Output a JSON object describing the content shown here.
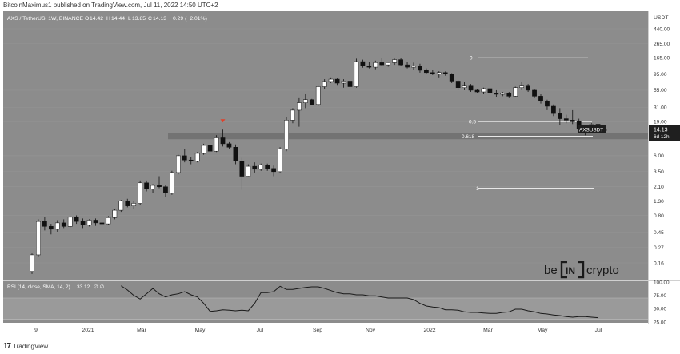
{
  "header": {
    "published_by": "BitcoinMaximus1 published on TradingView.com, Jul 11, 2022 14:50 UTC+2"
  },
  "footer": {
    "logo_text": "TradingView",
    "logo_mark": "17"
  },
  "symbol": {
    "title": "AXS / TetherUS, 1W, BINANCE",
    "open_label": "O",
    "open": "14.42",
    "high_label": "H",
    "high": "14.44",
    "low_label": "L",
    "low": "13.85",
    "close_label": "C",
    "close": "14.13",
    "change": "−0.29 (−2.01%)"
  },
  "price_badge": {
    "ticker": "AXSUSDT",
    "price": "14.13",
    "countdown": "6d 12h"
  },
  "watermark": {
    "left": "be",
    "middle": "IN",
    "right": "crypto"
  },
  "colors": {
    "pane": "#8c8c8c",
    "axis_bg": "#ffffff",
    "up": "#ffffff",
    "down": "#111111",
    "marker": "#e0402a"
  },
  "chart_data": [
    {
      "type": "candlestick",
      "title": "AXS / TetherUS, 1W, BINANCE",
      "y_scale": "log",
      "y_unit": "USDT",
      "y_ticks": [
        0.16,
        0.27,
        0.45,
        0.8,
        1.3,
        2.1,
        3.5,
        6.0,
        19.0,
        31.0,
        55.0,
        95.0,
        165.0,
        265.0,
        440.0
      ],
      "y_tick_labels": [
        "0.16",
        "0.27",
        "0.45",
        "0.80",
        "1.30",
        "2.10",
        "3.50",
        "6.00",
        "19.00",
        "31.00",
        "55.00",
        "95.00",
        "165.00",
        "265.00",
        "440.00"
      ],
      "x_tick_labels": [
        "9",
        "2021",
        "Mar",
        "May",
        "Jul",
        "Sep",
        "Nov",
        "2022",
        "Mar",
        "May",
        "Jul"
      ],
      "fib_levels": [
        {
          "label": "0",
          "price": 165
        },
        {
          "label": "0.5",
          "price": 19
        },
        {
          "label": "0.618",
          "price": 11.6
        },
        {
          "label": "1",
          "price": 2.0
        }
      ],
      "support_zone": [
        10.5,
        13.0
      ],
      "resistance_marker_price": 14.5,
      "candles": [
        [
          0.12,
          0.22,
          0.11,
          0.21
        ],
        [
          0.21,
          0.7,
          0.2,
          0.65
        ],
        [
          0.65,
          0.75,
          0.48,
          0.55
        ],
        [
          0.55,
          0.6,
          0.42,
          0.5
        ],
        [
          0.5,
          0.68,
          0.46,
          0.62
        ],
        [
          0.62,
          0.7,
          0.52,
          0.55
        ],
        [
          0.55,
          0.78,
          0.53,
          0.75
        ],
        [
          0.75,
          0.8,
          0.6,
          0.65
        ],
        [
          0.65,
          0.72,
          0.52,
          0.58
        ],
        [
          0.58,
          0.7,
          0.55,
          0.68
        ],
        [
          0.68,
          0.72,
          0.56,
          0.62
        ],
        [
          0.62,
          0.7,
          0.5,
          0.6
        ],
        [
          0.6,
          0.78,
          0.58,
          0.74
        ],
        [
          0.74,
          1.0,
          0.7,
          0.95
        ],
        [
          0.95,
          1.35,
          0.9,
          1.3
        ],
        [
          1.3,
          1.4,
          1.05,
          1.1
        ],
        [
          1.1,
          1.3,
          1.0,
          1.2
        ],
        [
          1.2,
          2.6,
          1.15,
          2.4
        ],
        [
          2.4,
          2.6,
          1.8,
          1.95
        ],
        [
          1.95,
          2.3,
          1.7,
          2.2
        ],
        [
          2.2,
          3.0,
          2.0,
          2.1
        ],
        [
          2.1,
          2.2,
          1.5,
          1.7
        ],
        [
          1.7,
          3.6,
          1.6,
          3.4
        ],
        [
          3.4,
          6.2,
          3.2,
          6.0
        ],
        [
          6.0,
          7.5,
          4.8,
          5.2
        ],
        [
          5.2,
          5.8,
          4.5,
          5.0
        ],
        [
          5.0,
          6.8,
          4.8,
          6.5
        ],
        [
          6.5,
          9.0,
          6.2,
          8.5
        ],
        [
          8.5,
          9.5,
          6.5,
          7.0
        ],
        [
          7.0,
          12.0,
          6.8,
          11.0
        ],
        [
          11.0,
          14.5,
          8.2,
          9.0
        ],
        [
          9.0,
          9.5,
          7.5,
          8.0
        ],
        [
          8.0,
          8.8,
          4.5,
          5.0
        ],
        [
          5.0,
          5.6,
          1.9,
          3.0
        ],
        [
          3.0,
          4.5,
          2.9,
          4.2
        ],
        [
          4.2,
          4.8,
          3.4,
          3.8
        ],
        [
          3.8,
          4.6,
          3.6,
          4.4
        ],
        [
          4.4,
          4.6,
          3.6,
          3.9
        ],
        [
          3.9,
          4.3,
          3.0,
          3.5
        ],
        [
          3.5,
          8.0,
          3.4,
          7.5
        ],
        [
          7.5,
          22.0,
          7.0,
          20.0
        ],
        [
          20.0,
          30.0,
          18.0,
          28.0
        ],
        [
          28.0,
          42.0,
          16.0,
          36.0
        ],
        [
          36.0,
          48.0,
          30.0,
          40.0
        ],
        [
          40.0,
          41.0,
          33.0,
          34.0
        ],
        [
          34.0,
          65.0,
          32.0,
          62.0
        ],
        [
          62.0,
          80.0,
          58.0,
          74.0
        ],
        [
          74.0,
          85.0,
          70.0,
          80.0
        ],
        [
          80.0,
          82.0,
          66.0,
          70.0
        ],
        [
          70.0,
          80.0,
          60.0,
          75.0
        ],
        [
          75.0,
          78.0,
          58.0,
          62.0
        ],
        [
          62.0,
          160.0,
          60.0,
          145.0
        ],
        [
          145.0,
          155.0,
          118.0,
          125.0
        ],
        [
          125.0,
          142.0,
          115.0,
          120.0
        ],
        [
          120.0,
          150.0,
          112.0,
          140.0
        ],
        [
          140.0,
          165.0,
          125.0,
          130.0
        ],
        [
          130.0,
          145.0,
          122.0,
          140.0
        ],
        [
          140.0,
          160.0,
          130.0,
          155.0
        ],
        [
          155.0,
          165.0,
          125.0,
          130.0
        ],
        [
          130.0,
          142.0,
          115.0,
          120.0
        ],
        [
          120.0,
          140.0,
          110.0,
          125.0
        ],
        [
          125.0,
          135.0,
          100.0,
          108.0
        ],
        [
          108.0,
          115.0,
          95.0,
          100.0
        ],
        [
          100.0,
          110.0,
          92.0,
          95.0
        ],
        [
          95.0,
          105.0,
          85.0,
          100.0
        ],
        [
          100.0,
          104.0,
          90.0,
          95.0
        ],
        [
          95.0,
          98.0,
          70.0,
          75.0
        ],
        [
          75.0,
          78.0,
          55.0,
          60.0
        ],
        [
          60.0,
          72.0,
          55.0,
          65.0
        ],
        [
          65.0,
          68.0,
          52.0,
          55.0
        ],
        [
          55.0,
          58.0,
          50.0,
          52.0
        ],
        [
          52.0,
          60.0,
          48.0,
          58.0
        ],
        [
          58.0,
          62.0,
          45.0,
          50.0
        ],
        [
          50.0,
          55.0,
          44.0,
          48.0
        ],
        [
          48.0,
          52.0,
          45.0,
          50.0
        ],
        [
          50.0,
          52.0,
          42.0,
          45.0
        ],
        [
          45.0,
          62.0,
          44.0,
          60.0
        ],
        [
          60.0,
          72.0,
          55.0,
          65.0
        ],
        [
          65.0,
          68.0,
          52.0,
          55.0
        ],
        [
          55.0,
          58.0,
          42.0,
          45.0
        ],
        [
          45.0,
          48.0,
          35.0,
          38.0
        ],
        [
          38.0,
          40.0,
          28.0,
          32.0
        ],
        [
          32.0,
          34.0,
          23.0,
          25.0
        ],
        [
          25.0,
          30.0,
          17.0,
          21.0
        ],
        [
          21.0,
          24.0,
          18.0,
          20.0
        ],
        [
          20.0,
          28.0,
          17.5,
          19.0
        ],
        [
          19.0,
          21.0,
          14.5,
          15.0
        ],
        [
          15.0,
          16.0,
          12.0,
          15.0
        ],
        [
          15.0,
          18.0,
          14.6,
          17.4
        ],
        [
          17.4,
          18.0,
          14.5,
          15.1
        ],
        [
          14.42,
          14.44,
          13.85,
          14.13
        ]
      ]
    },
    {
      "type": "line",
      "title": "RSI (14, close, SMA, 14, 2)",
      "current_value": "33.12",
      "current_flags": "∅ ∅",
      "y_ticks": [
        25,
        50,
        75,
        100
      ],
      "y_tick_labels": [
        "25.00",
        "50.00",
        "75.00",
        "100.00"
      ],
      "band": [
        30,
        70
      ],
      "start_index": 14,
      "values": [
        93,
        85,
        75,
        68,
        78,
        88,
        78,
        72,
        76,
        78,
        82,
        76,
        72,
        60,
        45,
        46,
        48,
        47,
        46,
        47,
        46,
        60,
        80,
        80,
        82,
        92,
        86,
        86,
        88,
        90,
        91,
        91,
        88,
        84,
        80,
        78,
        78,
        76,
        76,
        74,
        74,
        72,
        70,
        70,
        70,
        70,
        67,
        60,
        55,
        53,
        52,
        48,
        48,
        47,
        44,
        43,
        43,
        42,
        41,
        41,
        43,
        44,
        49,
        49,
        46,
        44,
        41,
        40,
        38,
        37,
        35,
        34,
        35,
        35,
        34,
        33.1
      ]
    }
  ]
}
